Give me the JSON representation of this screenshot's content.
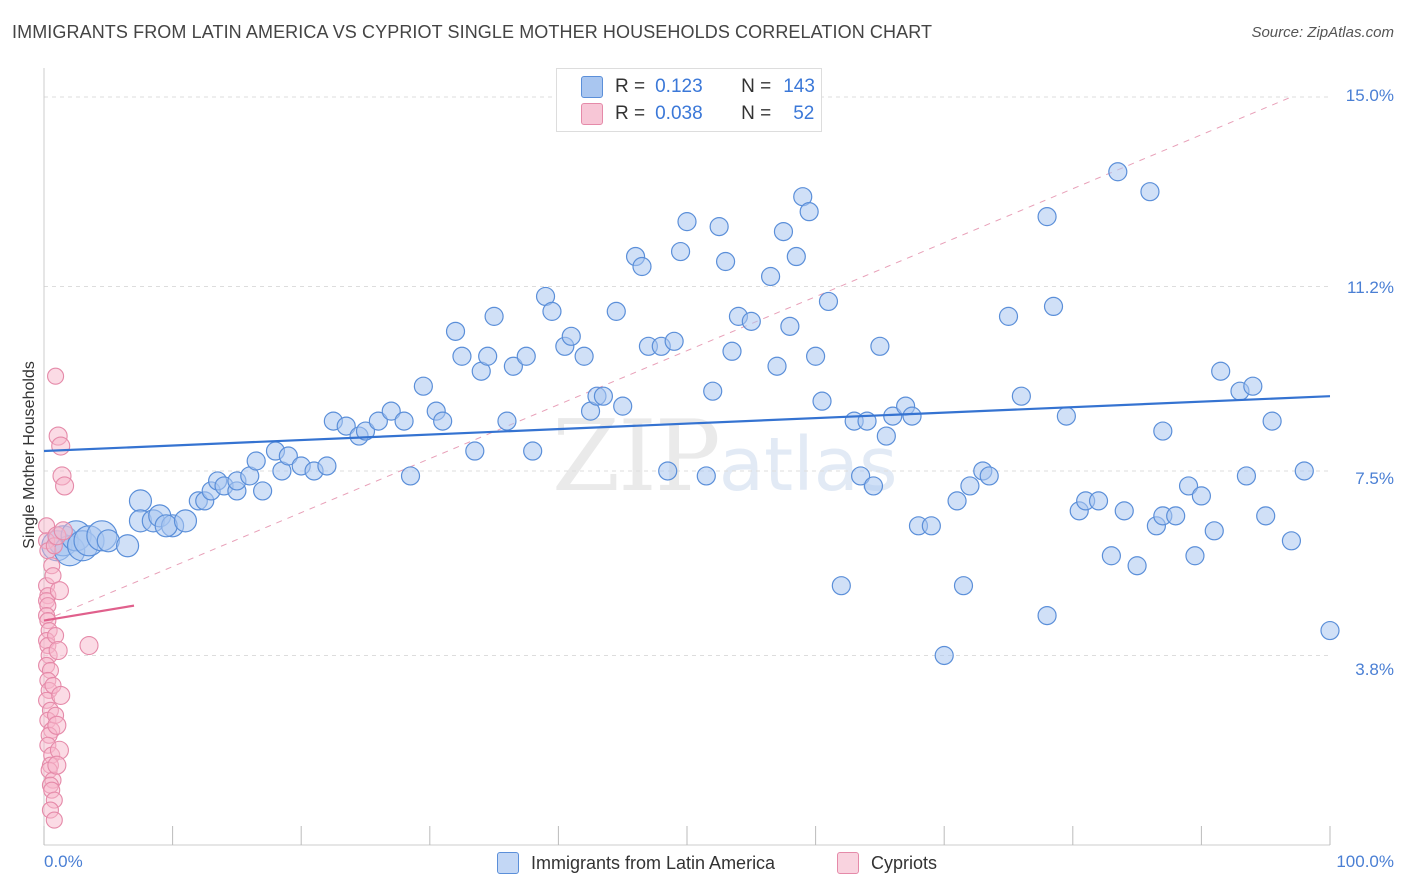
{
  "title": "IMMIGRANTS FROM LATIN AMERICA VS CYPRIOT SINGLE MOTHER HOUSEHOLDS CORRELATION CHART",
  "source": "Source: ZipAtlas.com",
  "watermark": {
    "zip": "ZIP",
    "atlas": "atlas"
  },
  "colors": {
    "blue_fill": "#a9c6f0",
    "blue_stroke": "#5b8fd9",
    "blue_line": "#3573d1",
    "pink_fill": "#f7b8cb",
    "pink_stroke": "#e58aa9",
    "pink_line": "#e0608c",
    "grid": "#dddddd",
    "tick_text": "#4a7fd4"
  },
  "legend": {
    "rows": [
      {
        "r_label": "R =",
        "r_value": "0.123",
        "n_label": "N =",
        "n_value": "143"
      },
      {
        "r_label": "R =",
        "r_value": "0.038",
        "n_label": "N =",
        "n_value": "52"
      }
    ]
  },
  "bottom_legend": {
    "blue": "Immigrants from Latin America",
    "pink": "Cypriots"
  },
  "chart_data": {
    "type": "scatter",
    "title": "IMMIGRANTS FROM LATIN AMERICA VS CYPRIOT SINGLE MOTHER HOUSEHOLDS CORRELATION CHART",
    "xlabel": "",
    "ylabel": "Single Mother Households",
    "xlim": [
      0,
      100
    ],
    "ylim": [
      0,
      15.4
    ],
    "x_tick_labels": [
      "0.0%",
      "100.0%"
    ],
    "y_ticks": [
      {
        "value": 3.8,
        "label": "3.8%"
      },
      {
        "value": 7.5,
        "label": "7.5%"
      },
      {
        "value": 11.2,
        "label": "11.2%"
      },
      {
        "value": 15.0,
        "label": "15.0%"
      }
    ],
    "series": [
      {
        "name": "Immigrants from Latin America",
        "color": "#5b8fd9",
        "R": 0.123,
        "N": 143,
        "trend": {
          "x": [
            0,
            100
          ],
          "y": [
            7.9,
            9.0
          ]
        },
        "points": [
          [
            1.0,
            6.0
          ],
          [
            1.5,
            6.1
          ],
          [
            2.0,
            5.9
          ],
          [
            2.5,
            6.2
          ],
          [
            3.0,
            6.0
          ],
          [
            3.5,
            6.1
          ],
          [
            4.5,
            6.2
          ],
          [
            5.0,
            6.1
          ],
          [
            6.5,
            6.0
          ],
          [
            7.5,
            6.9
          ],
          [
            7.5,
            6.5
          ],
          [
            8.5,
            6.5
          ],
          [
            9.0,
            6.6
          ],
          [
            10.0,
            6.4
          ],
          [
            9.5,
            6.4
          ],
          [
            11.0,
            6.5
          ],
          [
            12.0,
            6.9
          ],
          [
            12.5,
            6.9
          ],
          [
            13.0,
            7.1
          ],
          [
            13.5,
            7.3
          ],
          [
            14.0,
            7.2
          ],
          [
            15.0,
            7.1
          ],
          [
            15.0,
            7.3
          ],
          [
            16.0,
            7.4
          ],
          [
            16.5,
            7.7
          ],
          [
            17.0,
            7.1
          ],
          [
            18.0,
            7.9
          ],
          [
            18.5,
            7.5
          ],
          [
            19.0,
            7.8
          ],
          [
            20.0,
            7.6
          ],
          [
            21.0,
            7.5
          ],
          [
            22.0,
            7.6
          ],
          [
            22.5,
            8.5
          ],
          [
            23.5,
            8.4
          ],
          [
            24.5,
            8.2
          ],
          [
            25.0,
            8.3
          ],
          [
            26.0,
            8.5
          ],
          [
            27.0,
            8.7
          ],
          [
            28.0,
            8.5
          ],
          [
            28.5,
            7.4
          ],
          [
            29.5,
            9.2
          ],
          [
            30.5,
            8.7
          ],
          [
            31.0,
            8.5
          ],
          [
            32.0,
            10.3
          ],
          [
            32.5,
            9.8
          ],
          [
            33.5,
            7.9
          ],
          [
            34.0,
            9.5
          ],
          [
            34.5,
            9.8
          ],
          [
            35.0,
            10.6
          ],
          [
            36.0,
            8.5
          ],
          [
            36.5,
            9.6
          ],
          [
            37.5,
            9.8
          ],
          [
            38.0,
            7.9
          ],
          [
            39.0,
            11.0
          ],
          [
            39.5,
            10.7
          ],
          [
            40.5,
            10.0
          ],
          [
            41.0,
            10.2
          ],
          [
            42.0,
            9.8
          ],
          [
            42.5,
            8.7
          ],
          [
            43.0,
            9.0
          ],
          [
            43.5,
            9.0
          ],
          [
            44.5,
            10.7
          ],
          [
            45.0,
            8.8
          ],
          [
            46.0,
            11.8
          ],
          [
            46.5,
            11.6
          ],
          [
            47.0,
            10.0
          ],
          [
            48.0,
            10.0
          ],
          [
            48.5,
            7.5
          ],
          [
            49.0,
            10.1
          ],
          [
            49.5,
            11.9
          ],
          [
            50.0,
            12.5
          ],
          [
            51.5,
            7.4
          ],
          [
            52.0,
            9.1
          ],
          [
            52.5,
            12.4
          ],
          [
            53.0,
            11.7
          ],
          [
            53.5,
            9.9
          ],
          [
            54.0,
            10.6
          ],
          [
            55.0,
            10.5
          ],
          [
            56.5,
            11.4
          ],
          [
            57.0,
            9.6
          ],
          [
            57.5,
            12.3
          ],
          [
            58.0,
            10.4
          ],
          [
            58.5,
            11.8
          ],
          [
            59.0,
            13.0
          ],
          [
            59.5,
            12.7
          ],
          [
            60.0,
            9.8
          ],
          [
            60.5,
            8.9
          ],
          [
            61.0,
            10.9
          ],
          [
            62.0,
            5.2
          ],
          [
            63.0,
            8.5
          ],
          [
            63.5,
            7.4
          ],
          [
            64.0,
            8.5
          ],
          [
            64.5,
            7.2
          ],
          [
            65.0,
            10.0
          ],
          [
            65.5,
            8.2
          ],
          [
            66.0,
            8.6
          ],
          [
            67.0,
            8.8
          ],
          [
            67.5,
            8.6
          ],
          [
            68.0,
            6.4
          ],
          [
            69.0,
            6.4
          ],
          [
            70.0,
            3.8
          ],
          [
            71.0,
            6.9
          ],
          [
            71.5,
            5.2
          ],
          [
            72.0,
            7.2
          ],
          [
            73.0,
            7.5
          ],
          [
            73.5,
            7.4
          ],
          [
            75.0,
            10.6
          ],
          [
            76.0,
            9.0
          ],
          [
            78.0,
            4.6
          ],
          [
            78.0,
            12.6
          ],
          [
            78.5,
            10.8
          ],
          [
            79.5,
            8.6
          ],
          [
            80.5,
            6.7
          ],
          [
            81.0,
            6.9
          ],
          [
            82.0,
            6.9
          ],
          [
            83.0,
            5.8
          ],
          [
            83.5,
            13.5
          ],
          [
            84.0,
            6.7
          ],
          [
            85.0,
            5.6
          ],
          [
            86.0,
            13.1
          ],
          [
            86.5,
            6.4
          ],
          [
            87.0,
            6.6
          ],
          [
            87.0,
            8.3
          ],
          [
            88.0,
            6.6
          ],
          [
            89.0,
            7.2
          ],
          [
            89.5,
            5.8
          ],
          [
            90.0,
            7.0
          ],
          [
            91.0,
            6.3
          ],
          [
            91.5,
            9.5
          ],
          [
            93.0,
            9.1
          ],
          [
            93.5,
            7.4
          ],
          [
            94.0,
            9.2
          ],
          [
            95.0,
            6.6
          ],
          [
            95.5,
            8.5
          ],
          [
            97.0,
            6.1
          ],
          [
            98.0,
            7.5
          ],
          [
            100.0,
            4.3
          ]
        ]
      },
      {
        "name": "Cypriots",
        "color": "#e58aa9",
        "R": 0.038,
        "N": 52,
        "trend": {
          "x": [
            0,
            7
          ],
          "y": [
            4.5,
            4.8
          ]
        },
        "points": [
          [
            0.2,
            6.4
          ],
          [
            0.2,
            6.1
          ],
          [
            0.3,
            5.9
          ],
          [
            0.2,
            5.2
          ],
          [
            0.3,
            5.0
          ],
          [
            0.2,
            4.9
          ],
          [
            0.3,
            4.8
          ],
          [
            0.2,
            4.6
          ],
          [
            0.3,
            4.5
          ],
          [
            0.4,
            4.3
          ],
          [
            0.2,
            4.1
          ],
          [
            0.3,
            4.0
          ],
          [
            0.4,
            3.8
          ],
          [
            0.2,
            3.6
          ],
          [
            0.5,
            3.5
          ],
          [
            0.3,
            3.3
          ],
          [
            0.4,
            3.1
          ],
          [
            0.2,
            2.9
          ],
          [
            0.5,
            2.7
          ],
          [
            0.3,
            2.5
          ],
          [
            0.6,
            2.3
          ],
          [
            0.4,
            2.2
          ],
          [
            0.3,
            2.0
          ],
          [
            0.6,
            1.8
          ],
          [
            0.5,
            1.6
          ],
          [
            0.4,
            1.5
          ],
          [
            0.7,
            1.3
          ],
          [
            0.5,
            1.2
          ],
          [
            0.6,
            1.1
          ],
          [
            0.8,
            0.9
          ],
          [
            0.5,
            0.7
          ],
          [
            0.8,
            0.5
          ],
          [
            0.6,
            5.6
          ],
          [
            0.8,
            6.0
          ],
          [
            1.0,
            6.2
          ],
          [
            0.7,
            5.4
          ],
          [
            1.2,
            5.1
          ],
          [
            0.9,
            4.2
          ],
          [
            1.1,
            3.9
          ],
          [
            0.7,
            3.2
          ],
          [
            1.3,
            3.0
          ],
          [
            0.9,
            2.6
          ],
          [
            1.0,
            2.4
          ],
          [
            1.2,
            1.9
          ],
          [
            1.0,
            1.6
          ],
          [
            1.4,
            7.4
          ],
          [
            1.6,
            7.2
          ],
          [
            1.1,
            8.2
          ],
          [
            1.3,
            8.0
          ],
          [
            0.9,
            9.4
          ],
          [
            3.5,
            4.0
          ],
          [
            1.5,
            6.3
          ]
        ]
      }
    ]
  }
}
